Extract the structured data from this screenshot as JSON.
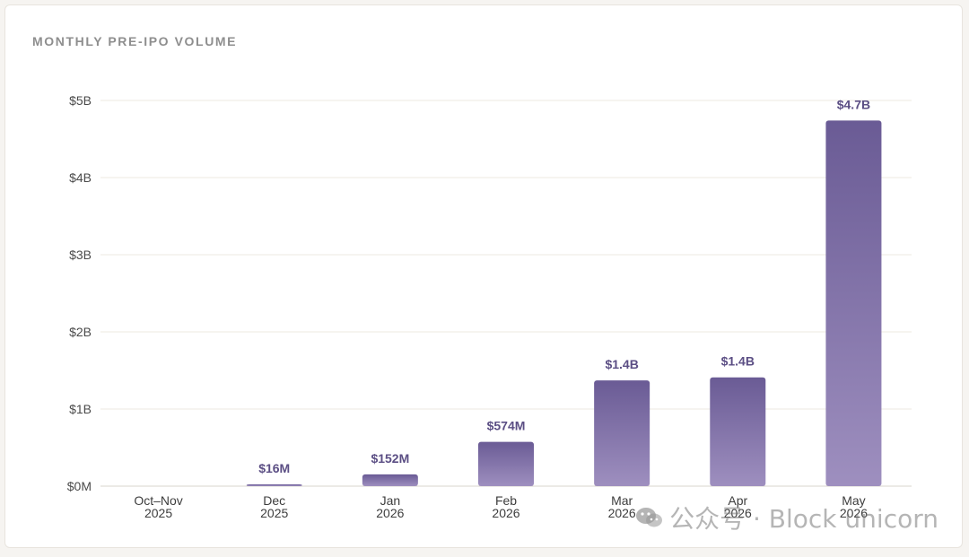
{
  "chart_data": {
    "type": "bar",
    "title": "MONTHLY PRE-IPO VOLUME",
    "categories": [
      [
        "Oct–Nov",
        "2025"
      ],
      [
        "Dec",
        "2025"
      ],
      [
        "Jan",
        "2026"
      ],
      [
        "Feb",
        "2026"
      ],
      [
        "Mar",
        "2026"
      ],
      [
        "Apr",
        "2026"
      ],
      [
        "May",
        "2026"
      ]
    ],
    "values": [
      0,
      0.016,
      0.152,
      0.574,
      1.37,
      1.41,
      4.74
    ],
    "value_labels": [
      "",
      "$16M",
      "$152M",
      "$574M",
      "$1.4B",
      "$1.4B",
      "$4.7B"
    ],
    "value_unit": "billions of USD",
    "ylim": [
      0,
      5
    ],
    "yticks": [
      0,
      1,
      2,
      3,
      4,
      5
    ],
    "ytick_labels": [
      "$0M",
      "$1B",
      "$2B",
      "$3B",
      "$4B",
      "$5B"
    ],
    "grid": true,
    "bar_color_top": "#6a5b95",
    "bar_color_bottom": "#9e8fbf"
  },
  "watermark": {
    "text": "公众号 · Block unicorn",
    "icon": "wechat-icon"
  }
}
